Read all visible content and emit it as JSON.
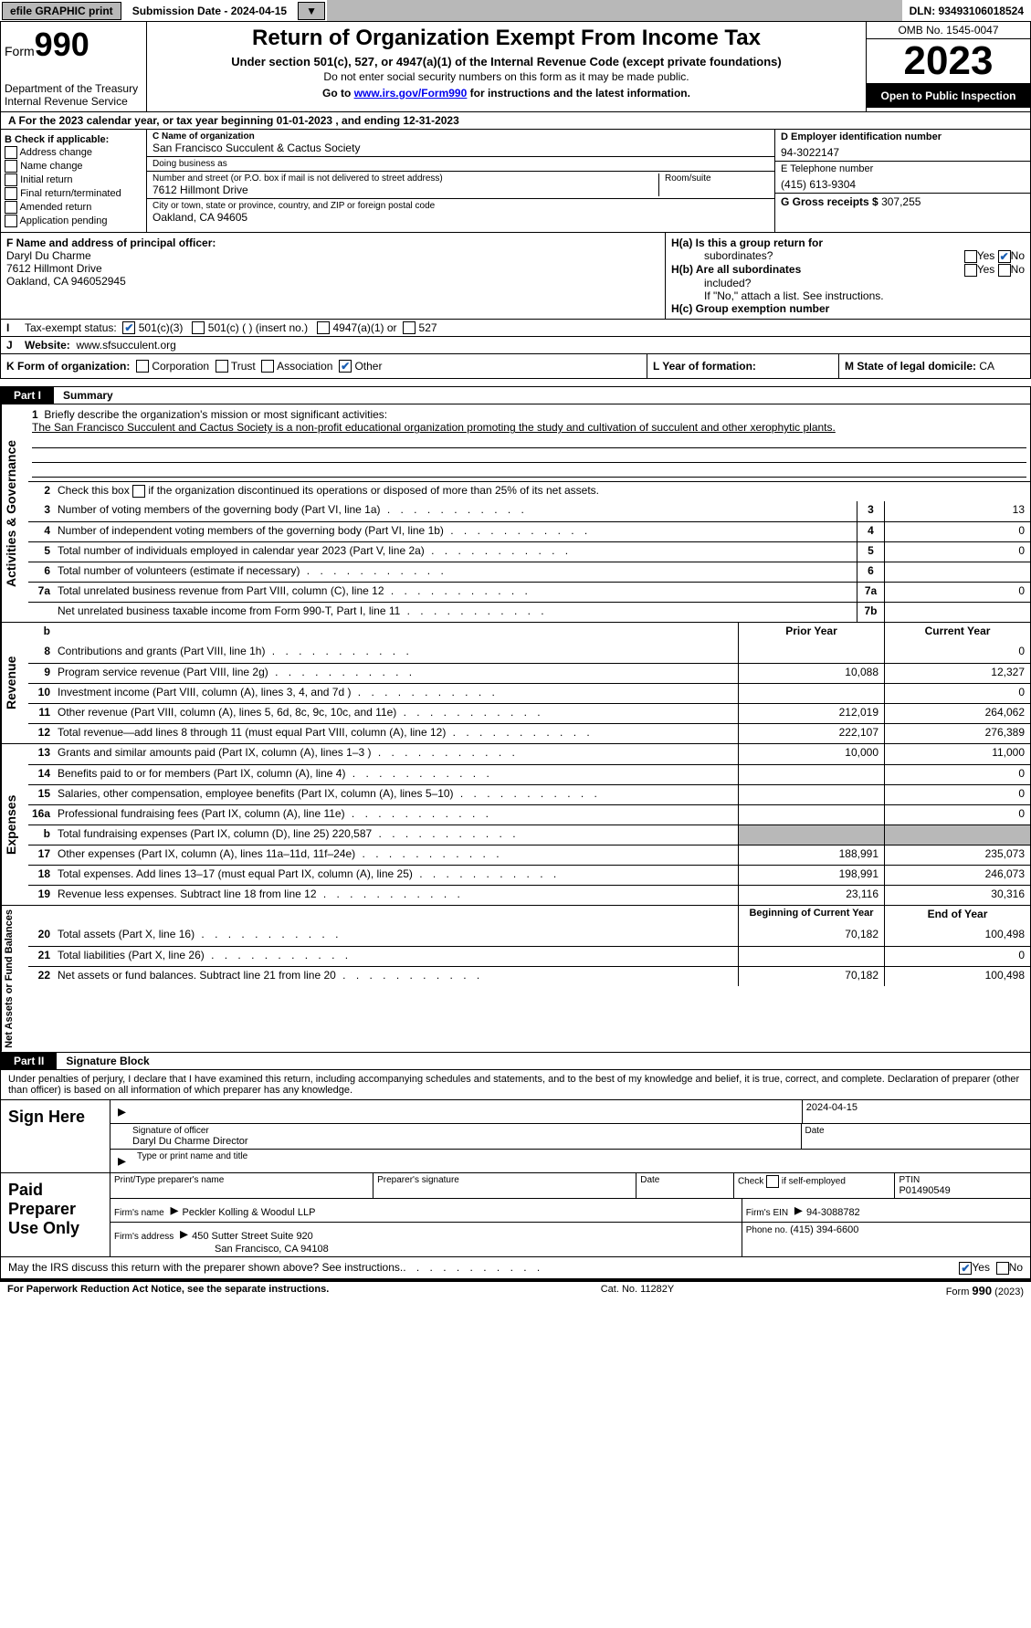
{
  "topbar": {
    "efile": "efile GRAPHIC print",
    "submission": "Submission Date - 2024-04-15",
    "dln": "DLN: 93493106018524"
  },
  "header": {
    "form_word": "Form",
    "form_num": "990",
    "title": "Return of Organization Exempt From Income Tax",
    "sub": "Under section 501(c), 527, or 4947(a)(1) of the Internal Revenue Code (except private foundations)",
    "sub2": "Do not enter social security numbers on this form as it may be made public.",
    "link_pre": "Go to ",
    "link": "www.irs.gov/Form990",
    "link_post": " for instructions and the latest information.",
    "dept": "Department of the Treasury",
    "irs": "Internal Revenue Service",
    "omb": "OMB No. 1545-0047",
    "year": "2023",
    "inspection": "Open to Public Inspection"
  },
  "line_a": "A  For the 2023 calendar year, or tax year beginning 01-01-2023    , and ending 12-31-2023",
  "section_b": {
    "header": "B Check if applicable:",
    "items": [
      "Address change",
      "Name change",
      "Initial return",
      "Final return/terminated",
      "Amended return",
      "Application pending"
    ]
  },
  "section_c": {
    "name_label": "C Name of organization",
    "name": "San Francisco Succulent & Cactus Society",
    "dba_label": "Doing business as",
    "dba": "",
    "street_label": "Number and street (or P.O. box if mail is not delivered to street address)",
    "street": "7612 Hillmont Drive",
    "room_label": "Room/suite",
    "city_label": "City or town, state or province, country, and ZIP or foreign postal code",
    "city": "Oakland, CA  94605"
  },
  "section_d": {
    "ein_label": "D Employer identification number",
    "ein": "94-3022147",
    "phone_label": "E Telephone number",
    "phone": "(415) 613-9304",
    "gross_label": "G Gross receipts $ ",
    "gross": "307,255"
  },
  "section_f": {
    "label": "F  Name and address of principal officer:",
    "name": "Daryl Du Charme",
    "street": "7612 Hillmont Drive",
    "city": "Oakland, CA  946052945"
  },
  "section_h": {
    "ha1": "H(a)  Is this a group return for",
    "ha2": "subordinates?",
    "hb1": "H(b)  Are all subordinates",
    "hb2": "included?",
    "hb3": "If \"No,\" attach a list. See instructions.",
    "hc": "H(c)  Group exemption number ",
    "yes": "Yes",
    "no": "No"
  },
  "section_i": {
    "label": "Tax-exempt status:",
    "opt1": "501(c)(3)",
    "opt2": "501(c) (   ) (insert no.)",
    "opt3": "4947(a)(1) or",
    "opt4": "527"
  },
  "section_j": {
    "label": "Website: ",
    "value": "www.sfsucculent.org"
  },
  "section_k": {
    "label": "K Form of organization:",
    "opt1": "Corporation",
    "opt2": "Trust",
    "opt3": "Association",
    "opt4": "Other"
  },
  "section_l": {
    "label": "L Year of formation:",
    "value": ""
  },
  "section_m": {
    "label": "M State of legal domicile: ",
    "value": "CA"
  },
  "part1": {
    "tag": "Part I",
    "title": "Summary",
    "side1": "Activities & Governance",
    "side2": "Revenue",
    "side3": "Expenses",
    "side4": "Net Assets or Fund Balances",
    "mission_label": "Briefly describe the organization's mission or most significant activities:",
    "mission": "The San Francisco Succulent and Cactus Society is a non-profit educational organization promoting the study and cultivation of succulent and other xerophytic plants.",
    "line2": "Check this box          if the organization discontinued its operations or disposed of more than 25% of its net assets.",
    "rows_gov": [
      {
        "n": "3",
        "t": "Number of voting members of the governing body (Part VI, line 1a)",
        "b": "3",
        "v": "13"
      },
      {
        "n": "4",
        "t": "Number of independent voting members of the governing body (Part VI, line 1b)",
        "b": "4",
        "v": "0"
      },
      {
        "n": "5",
        "t": "Total number of individuals employed in calendar year 2023 (Part V, line 2a)",
        "b": "5",
        "v": "0"
      },
      {
        "n": "6",
        "t": "Total number of volunteers (estimate if necessary)",
        "b": "6",
        "v": ""
      },
      {
        "n": "7a",
        "t": "Total unrelated business revenue from Part VIII, column (C), line 12",
        "b": "7a",
        "v": "0"
      },
      {
        "n": "",
        "t": "Net unrelated business taxable income from Form 990-T, Part I, line 11",
        "b": "7b",
        "v": ""
      }
    ],
    "prior_year": "Prior Year",
    "current_year": "Current Year",
    "rows_rev": [
      {
        "n": "8",
        "t": "Contributions and grants (Part VIII, line 1h)",
        "p": "",
        "c": "0"
      },
      {
        "n": "9",
        "t": "Program service revenue (Part VIII, line 2g)",
        "p": "10,088",
        "c": "12,327"
      },
      {
        "n": "10",
        "t": "Investment income (Part VIII, column (A), lines 3, 4, and 7d )",
        "p": "",
        "c": "0"
      },
      {
        "n": "11",
        "t": "Other revenue (Part VIII, column (A), lines 5, 6d, 8c, 9c, 10c, and 11e)",
        "p": "212,019",
        "c": "264,062"
      },
      {
        "n": "12",
        "t": "Total revenue—add lines 8 through 11 (must equal Part VIII, column (A), line 12)",
        "p": "222,107",
        "c": "276,389"
      }
    ],
    "rows_exp": [
      {
        "n": "13",
        "t": "Grants and similar amounts paid (Part IX, column (A), lines 1–3 )",
        "p": "10,000",
        "c": "11,000"
      },
      {
        "n": "14",
        "t": "Benefits paid to or for members (Part IX, column (A), line 4)",
        "p": "",
        "c": "0"
      },
      {
        "n": "15",
        "t": "Salaries, other compensation, employee benefits (Part IX, column (A), lines 5–10)",
        "p": "",
        "c": "0"
      },
      {
        "n": "16a",
        "t": "Professional fundraising fees (Part IX, column (A), line 11e)",
        "p": "",
        "c": "0"
      },
      {
        "n": "b",
        "t": "Total fundraising expenses (Part IX, column (D), line 25) 220,587",
        "p": "GREY",
        "c": "GREY"
      },
      {
        "n": "17",
        "t": "Other expenses (Part IX, column (A), lines 11a–11d, 11f–24e)",
        "p": "188,991",
        "c": "235,073"
      },
      {
        "n": "18",
        "t": "Total expenses. Add lines 13–17 (must equal Part IX, column (A), line 25)",
        "p": "198,991",
        "c": "246,073"
      },
      {
        "n": "19",
        "t": "Revenue less expenses. Subtract line 18 from line 12",
        "p": "23,116",
        "c": "30,316"
      }
    ],
    "begin_year": "Beginning of Current Year",
    "end_year": "End of Year",
    "rows_net": [
      {
        "n": "20",
        "t": "Total assets (Part X, line 16)",
        "p": "70,182",
        "c": "100,498"
      },
      {
        "n": "21",
        "t": "Total liabilities (Part X, line 26)",
        "p": "",
        "c": "0"
      },
      {
        "n": "22",
        "t": "Net assets or fund balances. Subtract line 21 from line 20",
        "p": "70,182",
        "c": "100,498"
      }
    ]
  },
  "part2": {
    "tag": "Part II",
    "title": "Signature Block",
    "intro": "Under penalties of perjury, I declare that I have examined this return, including accompanying schedules and statements, and to the best of my knowledge and belief, it is true, correct, and complete. Declaration of preparer (other than officer) is based on all information of which preparer has any knowledge.",
    "sign_here": "Sign Here",
    "sig_date": "2024-04-15",
    "sig_off_label": "Signature of officer",
    "sig_off": "Daryl Du Charme  Director",
    "sig_type_label": "Type or print name and title",
    "date_label": "Date",
    "paid_label": "Paid Preparer Use Only",
    "prep_name_label": "Print/Type preparer's name",
    "prep_sig_label": "Preparer's signature",
    "prep_date_label": "Date",
    "self_emp": "Check         if self-employed",
    "ptin_label": "PTIN",
    "ptin": "P01490549",
    "firm_name_label": "Firm's name      ",
    "firm_name": "Peckler Kolling & Woodul LLP",
    "firm_ein_label": "Firm's EIN  ",
    "firm_ein": "94-3088782",
    "firm_addr_label": "Firm's address ",
    "firm_addr1": "450 Sutter Street Suite 920",
    "firm_addr2": "San Francisco, CA  94108",
    "firm_phone_label": "Phone no. ",
    "firm_phone": "(415) 394-6600",
    "discuss": "May the IRS discuss this return with the preparer shown above? See instructions."
  },
  "footer": {
    "left": "For Paperwork Reduction Act Notice, see the separate instructions.",
    "mid": "Cat. No. 11282Y",
    "right_pre": "Form ",
    "right_form": "990",
    "right_post": " (2023)"
  }
}
